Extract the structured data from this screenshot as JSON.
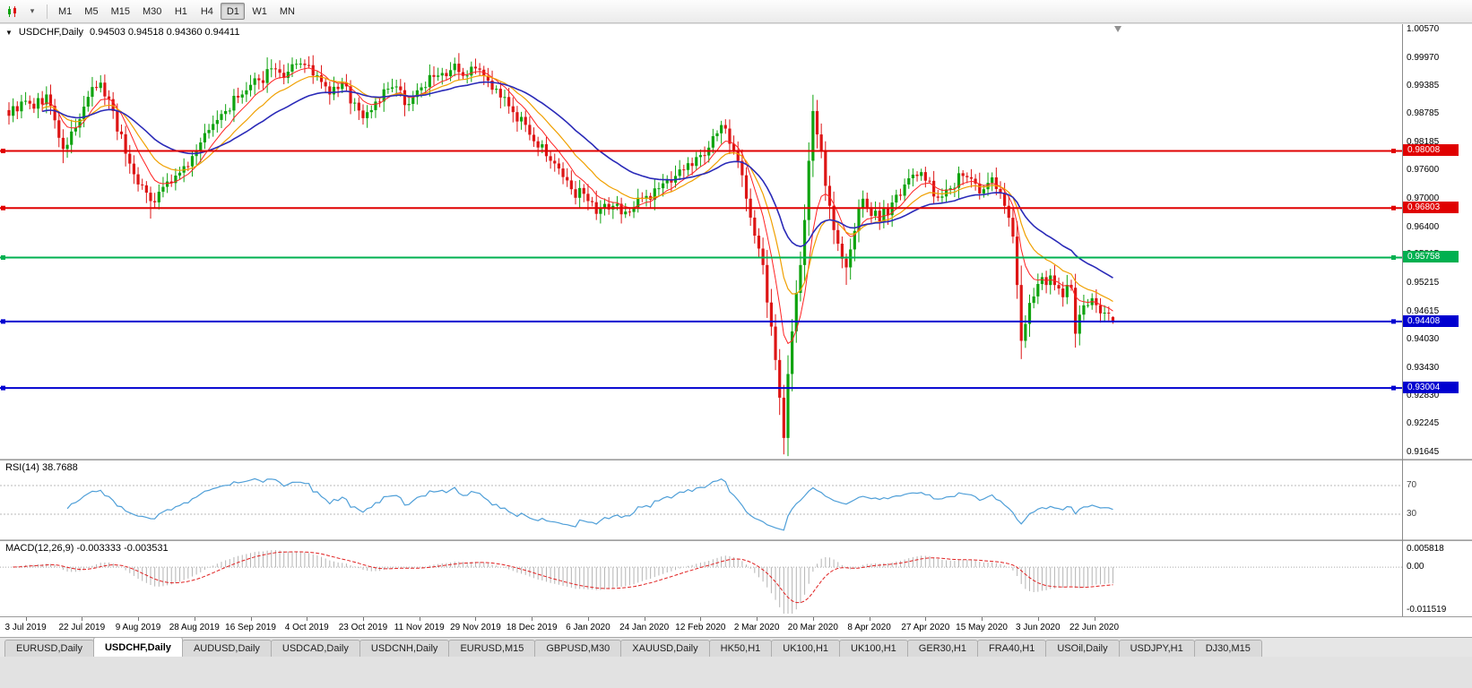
{
  "toolbar": {
    "icons": [
      "chart-icon",
      "dropdown-arrow-icon"
    ],
    "timeframes": [
      {
        "label": "M1",
        "active": false
      },
      {
        "label": "M5",
        "active": false
      },
      {
        "label": "M15",
        "active": false
      },
      {
        "label": "M30",
        "active": false
      },
      {
        "label": "H1",
        "active": false
      },
      {
        "label": "H4",
        "active": false
      },
      {
        "label": "D1",
        "active": true
      },
      {
        "label": "W1",
        "active": false
      },
      {
        "label": "MN",
        "active": false
      }
    ]
  },
  "chart_window": {
    "collapse_arrow": "▼",
    "symbol_title": "USDCHF,Daily",
    "ohlc_text": "0.94503 0.94518 0.94360 0.94411",
    "open": "0.94503",
    "high": "0.94518",
    "low": "0.94360",
    "close": "0.94411"
  },
  "price_axis": {
    "min": 0.91645,
    "max": 1.0057,
    "labels": [
      "1.00570",
      "0.99970",
      "0.99385",
      "0.98785",
      "0.98185",
      "0.97600",
      "0.97000",
      "0.96400",
      "0.95815",
      "0.95215",
      "0.94615",
      "0.94030",
      "0.93430",
      "0.92830",
      "0.92245",
      "0.91645"
    ]
  },
  "hlines": [
    {
      "value": 0.98008,
      "label": "0.98008",
      "color": "#e00000"
    },
    {
      "value": 0.96803,
      "label": "0.96803",
      "color": "#e00000"
    },
    {
      "value": 0.95758,
      "label": "0.95758",
      "color": "#00b050"
    },
    {
      "value": 0.94408,
      "label": "0.94408",
      "color": "#0000d0"
    },
    {
      "value": 0.93004,
      "label": "0.93004",
      "color": "#0000d0"
    }
  ],
  "indicators": {
    "rsi": {
      "title": "RSI(14) 38.7688",
      "period": 14,
      "upper_level": "70",
      "lower_level": "30",
      "color": "#4f9fd8"
    },
    "macd": {
      "title": "MACD(12,26,9) -0.003333 -0.003531",
      "fast": 12,
      "slow": 26,
      "signal": 9,
      "scale_top": "0.005818",
      "scale_zero": "0.00",
      "scale_bottom": "-0.011519"
    }
  },
  "time_axis": {
    "labels": [
      "3 Jul 2019",
      "22 Jul 2019",
      "9 Aug 2019",
      "28 Aug 2019",
      "16 Sep 2019",
      "4 Oct 2019",
      "23 Oct 2019",
      "11 Nov 2019",
      "29 Nov 2019",
      "18 Dec 2019",
      "6 Jan 2020",
      "24 Jan 2020",
      "12 Feb 2020",
      "2 Mar 2020",
      "20 Mar 2020",
      "8 Apr 2020",
      "27 Apr 2020",
      "15 May 2020",
      "3 Jun 2020",
      "22 Jun 2020"
    ]
  },
  "tabs": [
    {
      "label": "EURUSD,Daily",
      "active": false
    },
    {
      "label": "USDCHF,Daily",
      "active": true
    },
    {
      "label": "AUDUSD,Daily",
      "active": false
    },
    {
      "label": "USDCAD,Daily",
      "active": false
    },
    {
      "label": "USDCNH,Daily",
      "active": false
    },
    {
      "label": "EURUSD,M15",
      "active": false
    },
    {
      "label": "GBPUSD,M30",
      "active": false
    },
    {
      "label": "XAUUSD,Daily",
      "active": false
    },
    {
      "label": "HK50,H1",
      "active": false
    },
    {
      "label": "UK100,H1",
      "active": false
    },
    {
      "label": "UK100,H1",
      "active": false
    },
    {
      "label": "GER30,H1",
      "active": false
    },
    {
      "label": "FRA40,H1",
      "active": false
    },
    {
      "label": "USOil,Daily",
      "active": false
    },
    {
      "label": "USDJPY,H1",
      "active": false
    },
    {
      "label": "DJ30,M15",
      "active": false
    }
  ],
  "chart_data": {
    "type": "candlestick",
    "symbol": "USDCHF",
    "timeframe": "Daily",
    "candle_count": 266,
    "colors": {
      "up": "#0fa30f",
      "down": "#dd1515"
    },
    "price_anchors": [
      [
        0,
        0.9875
      ],
      [
        3,
        0.9905
      ],
      [
        6,
        0.989
      ],
      [
        9,
        0.992
      ],
      [
        13,
        0.9805
      ],
      [
        16,
        0.985
      ],
      [
        19,
        0.9915
      ],
      [
        22,
        0.9945
      ],
      [
        25,
        0.9885
      ],
      [
        28,
        0.9795
      ],
      [
        31,
        0.973
      ],
      [
        34,
        0.9695
      ],
      [
        37,
        0.9725
      ],
      [
        41,
        0.9755
      ],
      [
        44,
        0.979
      ],
      [
        48,
        0.9845
      ],
      [
        52,
        0.9885
      ],
      [
        56,
        0.992
      ],
      [
        60,
        0.995
      ],
      [
        63,
        0.9975
      ],
      [
        66,
        0.9955
      ],
      [
        70,
        0.9985
      ],
      [
        73,
        0.996
      ],
      [
        77,
        0.992
      ],
      [
        80,
        0.9945
      ],
      [
        85,
        0.987
      ],
      [
        88,
        0.9905
      ],
      [
        92,
        0.9935
      ],
      [
        96,
        0.99
      ],
      [
        99,
        0.9935
      ],
      [
        103,
        0.996
      ],
      [
        107,
        0.9985
      ],
      [
        110,
        0.996
      ],
      [
        112,
        0.9975
      ],
      [
        116,
        0.993
      ],
      [
        120,
        0.9895
      ],
      [
        125,
        0.9835
      ],
      [
        130,
        0.978
      ],
      [
        135,
        0.972
      ],
      [
        139,
        0.9695
      ],
      [
        141,
        0.9668
      ],
      [
        145,
        0.9685
      ],
      [
        149,
        0.9672
      ],
      [
        152,
        0.97
      ],
      [
        156,
        0.9722
      ],
      [
        160,
        0.9748
      ],
      [
        163,
        0.9775
      ],
      [
        166,
        0.9792
      ],
      [
        169,
        0.9832
      ],
      [
        172,
        0.9848
      ],
      [
        175,
        0.978
      ],
      [
        177,
        0.97
      ],
      [
        179,
        0.9622
      ],
      [
        181,
        0.956
      ],
      [
        183,
        0.943
      ],
      [
        185,
        0.928
      ],
      [
        186,
        0.9195
      ],
      [
        187,
        0.933
      ],
      [
        188,
        0.942
      ],
      [
        190,
        0.956
      ],
      [
        191,
        0.9655
      ],
      [
        192,
        0.978
      ],
      [
        193,
        0.9885
      ],
      [
        195,
        0.98
      ],
      [
        197,
        0.9685
      ],
      [
        199,
        0.9605
      ],
      [
        201,
        0.9555
      ],
      [
        203,
        0.9632
      ],
      [
        205,
        0.97
      ],
      [
        206,
        0.9682
      ],
      [
        209,
        0.9652
      ],
      [
        212,
        0.9692
      ],
      [
        215,
        0.973
      ],
      [
        218,
        0.9748
      ],
      [
        220,
        0.9738
      ],
      [
        223,
        0.9702
      ],
      [
        226,
        0.9722
      ],
      [
        229,
        0.9748
      ],
      [
        232,
        0.9732
      ],
      [
        234,
        0.972
      ],
      [
        236,
        0.9745
      ],
      [
        239,
        0.9685
      ],
      [
        241,
        0.962
      ],
      [
        243,
        0.94
      ],
      [
        245,
        0.948
      ],
      [
        247,
        0.952
      ],
      [
        250,
        0.9538
      ],
      [
        253,
        0.9492
      ],
      [
        255,
        0.9512
      ],
      [
        256,
        0.9415
      ],
      [
        258,
        0.9475
      ],
      [
        260,
        0.949
      ],
      [
        262,
        0.9458
      ],
      [
        265,
        0.94411
      ]
    ],
    "wick_overrides": {
      "lows": [
        [
          13,
          0.9775
        ],
        [
          34,
          0.9658
        ],
        [
          141,
          0.9655
        ],
        [
          186,
          0.9165
        ],
        [
          201,
          0.9518
        ],
        [
          243,
          0.9385
        ],
        [
          256,
          0.9398
        ]
      ],
      "highs": [
        [
          22,
          0.9958
        ],
        [
          63,
          0.999
        ],
        [
          70,
          0.9997
        ],
        [
          107,
          0.9997
        ],
        [
          172,
          0.9853
        ],
        [
          193,
          0.9902
        ],
        [
          250,
          0.9552
        ]
      ]
    },
    "last_candle": {
      "open": 0.94503,
      "high": 0.94518,
      "low": 0.9436,
      "close": 0.94411
    },
    "moving_averages": [
      {
        "name": "fast-ma",
        "period": 8,
        "color": "#ff2222",
        "width": 1
      },
      {
        "name": "medium-ma",
        "period": 16,
        "color": "#f0a000",
        "width": 1.2
      },
      {
        "name": "slow-ma",
        "period": 34,
        "color": "#2a2ab8",
        "width": 1.6
      }
    ],
    "horizontal_line_values": [
      0.98008,
      0.96803,
      0.95758,
      0.94408,
      0.93004
    ]
  }
}
